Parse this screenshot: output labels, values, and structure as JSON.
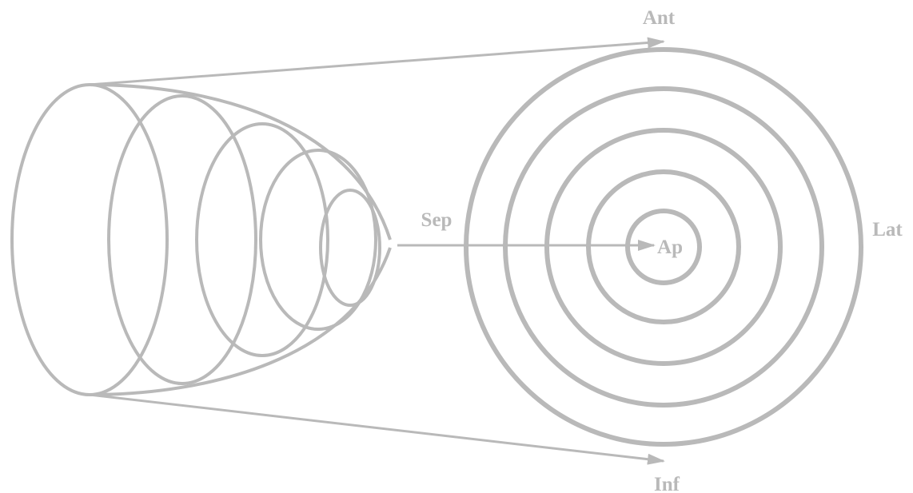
{
  "diagram": {
    "labels": {
      "anterior": "Ant",
      "inferior": "Inf",
      "septal": "Sep",
      "lateral": "Lat",
      "apex": "Ap"
    },
    "colors": {
      "stroke": "#b9b9b9",
      "text": "#b9b9b9",
      "background": "#ffffff"
    },
    "left_view": {
      "shape": "truncated-paraboloid",
      "ring_count": 5
    },
    "right_view": {
      "shape": "concentric-circles",
      "ring_count": 5
    }
  }
}
